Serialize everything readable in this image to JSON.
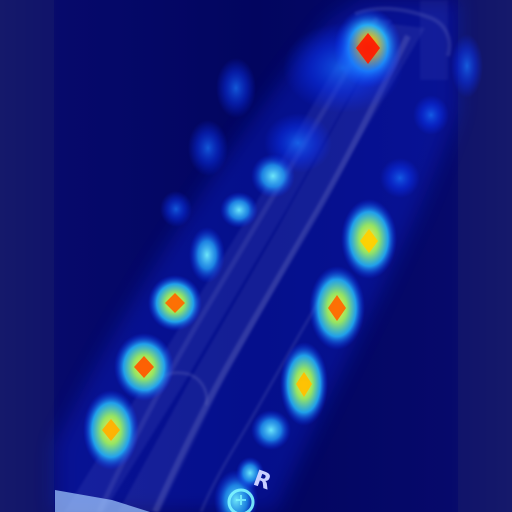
{
  "image": {
    "kind": "x-ray heatmap overlay",
    "marker_text": "R",
    "colors": {
      "background": "#02055f",
      "heat_low": "#0a2cff",
      "heat_mid": "#29c7ff",
      "heat_high": "#ffe04a",
      "heat_peak": "#ff2a00",
      "bone": "#c9d0ff"
    }
  }
}
